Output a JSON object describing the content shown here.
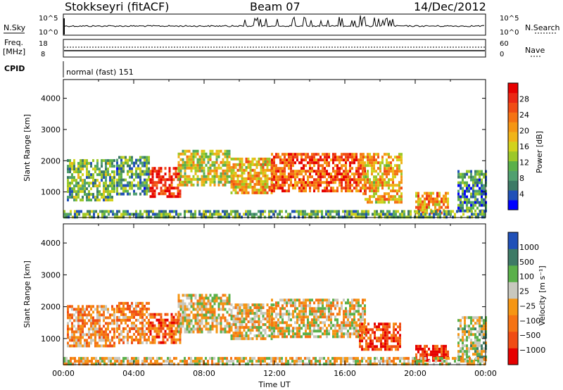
{
  "header": {
    "site": "Stokkseyri (fitACF)",
    "beam": "Beam 07",
    "date": "14/Dec/2012"
  },
  "status": {
    "nsky_label": "N.Sky",
    "nsky_ticks": [
      "10^5",
      "10^0"
    ],
    "nsearch_label": "N.Search",
    "nsearch_ticks": [
      "10^5",
      "10^0"
    ],
    "freq_label": "Freq.",
    "freq_unit": "[MHz]",
    "freq_ticks": [
      "18",
      "8"
    ],
    "nave_label": "Nave",
    "nave_ticks": [
      "60",
      "0"
    ],
    "cpid_label": "CPID",
    "cpid_value": "normal (fast) 151"
  },
  "chart_data": [
    {
      "type": "heatmap",
      "title": "Power",
      "ylabel": "Slant Range [km]",
      "xlabel": "",
      "ylim": [
        180,
        4600
      ],
      "xlim": [
        0,
        24
      ],
      "yticks": [
        "1000",
        "2000",
        "3000",
        "4000"
      ],
      "colorbar_label": "Power [dB]",
      "colorbar_ticks": [
        "28",
        "24",
        "20",
        "16",
        "12",
        "8",
        "4"
      ],
      "colorbar_colors": [
        "#0000ff",
        "#2050b8",
        "#3d7a66",
        "#50a070",
        "#5ab04a",
        "#9cc829",
        "#d2d21c",
        "#f0b418",
        "#f59614",
        "#f57314",
        "#f04c14",
        "#eb2814",
        "#e60000"
      ],
      "regions": [
        {
          "t0": 0.2,
          "t1": 2.9,
          "r0": 750,
          "r1": 2050,
          "level": 0.35
        },
        {
          "t0": 3.0,
          "t1": 4.9,
          "r0": 900,
          "r1": 2150,
          "level": 0.3
        },
        {
          "t0": 4.9,
          "t1": 6.7,
          "r0": 850,
          "r1": 1800,
          "level": 0.9
        },
        {
          "t0": 6.5,
          "t1": 9.5,
          "r0": 1250,
          "r1": 2350,
          "level": 0.5
        },
        {
          "t0": 9.5,
          "t1": 12.0,
          "r0": 1000,
          "r1": 2100,
          "level": 0.6
        },
        {
          "t0": 11.8,
          "t1": 17.2,
          "r0": 1050,
          "r1": 2250,
          "level": 0.8
        },
        {
          "t0": 17.0,
          "t1": 19.2,
          "r0": 650,
          "r1": 2250,
          "level": 0.6
        },
        {
          "t0": 20.0,
          "t1": 21.9,
          "r0": 350,
          "r1": 1000,
          "level": 0.65
        },
        {
          "t0": 22.4,
          "t1": 24.0,
          "r0": 350,
          "r1": 1700,
          "level": 0.25
        },
        {
          "t0": 0.0,
          "t1": 24.0,
          "r0": 200,
          "r1": 420,
          "level": 0.3
        }
      ]
    },
    {
      "type": "heatmap",
      "title": "Velocity",
      "ylabel": "Slant Range [km]",
      "xlabel": "Time UT",
      "ylim": [
        180,
        4600
      ],
      "xlim": [
        0,
        24
      ],
      "yticks": [
        "1000",
        "2000",
        "3000",
        "4000"
      ],
      "xticks": [
        "00:00",
        "04:00",
        "08:00",
        "12:00",
        "16:00",
        "20:00",
        "00:00"
      ],
      "colorbar_label": "Velocity [m s⁻¹]",
      "colorbar_ticks": [
        "1000",
        "500",
        "100",
        "25",
        "−25",
        "−100",
        "−500",
        "−1000"
      ],
      "colorbar_colors": [
        "#e60000",
        "#f04c14",
        "#f57314",
        "#f59614",
        "#c8c8be",
        "#5ab04a",
        "#3d7a66",
        "#2050b8"
      ],
      "regions": [
        {
          "t0": 0.2,
          "t1": 2.9,
          "r0": 750,
          "r1": 2050,
          "level": 0.4
        },
        {
          "t0": 3.0,
          "t1": 4.9,
          "r0": 900,
          "r1": 2150,
          "level": 0.35
        },
        {
          "t0": 4.9,
          "t1": 6.7,
          "r0": 850,
          "r1": 1800,
          "level": 0.25
        },
        {
          "t0": 6.5,
          "t1": 9.5,
          "r0": 1250,
          "r1": 2400,
          "level": 0.5
        },
        {
          "t0": 9.5,
          "t1": 12.0,
          "r0": 1000,
          "r1": 2100,
          "level": 0.5
        },
        {
          "t0": 11.8,
          "t1": 17.2,
          "r0": 1050,
          "r1": 2250,
          "level": 0.5
        },
        {
          "t0": 16.8,
          "t1": 19.2,
          "r0": 650,
          "r1": 1500,
          "level": 0.2
        },
        {
          "t0": 20.0,
          "t1": 21.9,
          "r0": 350,
          "r1": 800,
          "level": 0.15
        },
        {
          "t0": 22.4,
          "t1": 24.0,
          "r0": 350,
          "r1": 1700,
          "level": 0.6
        },
        {
          "t0": 0.0,
          "t1": 24.0,
          "r0": 200,
          "r1": 420,
          "level": 0.5
        }
      ]
    }
  ]
}
